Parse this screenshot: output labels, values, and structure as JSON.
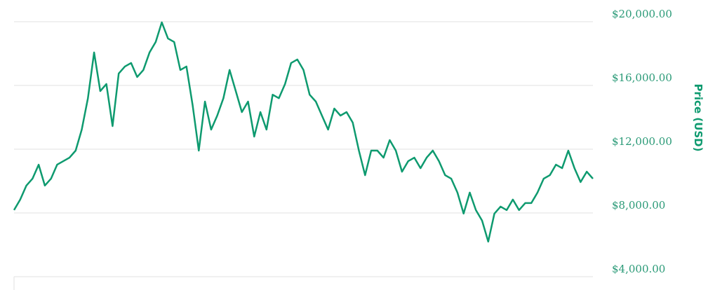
{
  "chart_data": {
    "type": "line",
    "y_axis_title": "Price (USD)",
    "color": "#0e9a6f",
    "values": [
      8180,
      8840,
      9720,
      10150,
      11030,
      9720,
      10150,
      11030,
      11250,
      11470,
      11910,
      13230,
      15200,
      18070,
      15650,
      16090,
      13450,
      16750,
      17190,
      17410,
      16530,
      16970,
      18070,
      18730,
      19960,
      18950,
      18730,
      16970,
      17190,
      14770,
      11910,
      14990,
      13230,
      14110,
      15200,
      16970,
      15650,
      14330,
      14990,
      12790,
      14330,
      13230,
      15420,
      15200,
      16090,
      17410,
      17630,
      16970,
      15420,
      14990,
      14110,
      13230,
      14550,
      14110,
      14330,
      13670,
      11910,
      10370,
      11910,
      11910,
      11470,
      12570,
      11910,
      10590,
      11250,
      11470,
      10810,
      11470,
      11910,
      11250,
      10370,
      10150,
      9280,
      7960,
      9280,
      8180,
      7520,
      6200,
      7960,
      8400,
      8180,
      8840,
      8180,
      8620,
      8620,
      9280,
      10150,
      10370,
      11030,
      10810,
      11910,
      10810,
      9940,
      10590,
      10150
    ],
    "ylim": [
      4000,
      20000
    ],
    "yticks": [
      {
        "value": 4000,
        "label": "$4,000.00"
      },
      {
        "value": 8000,
        "label": "$8,000.00"
      },
      {
        "value": 12000,
        "label": "$12,000.00"
      },
      {
        "value": 16000,
        "label": "$16,000.00"
      },
      {
        "value": 20000,
        "label": "$20,000.00"
      }
    ],
    "grid": true
  }
}
